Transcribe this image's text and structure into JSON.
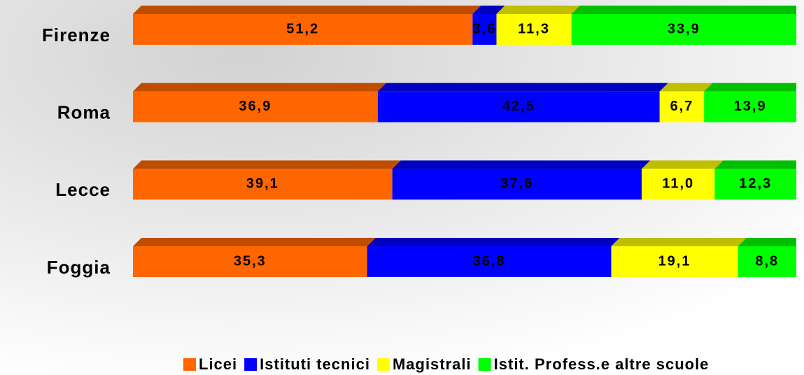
{
  "chart_data": {
    "type": "stacked-bar-horizontal",
    "categories": [
      "Firenze",
      "Roma",
      "Lecce",
      "Foggia"
    ],
    "series": [
      {
        "name": "Licei",
        "color": "#ff6600",
        "values": [
          51.2,
          36.9,
          39.1,
          35.3
        ],
        "value_labels": [
          "51,2",
          "36,9",
          "39,1",
          "35,3"
        ]
      },
      {
        "name": "Istituti tecnici",
        "color": "#0000ff",
        "values": [
          3.6,
          42.5,
          37.6,
          36.8
        ],
        "value_labels": [
          "3,6",
          "42,5",
          "37,6",
          "36,8"
        ]
      },
      {
        "name": "Magistrali",
        "color": "#ffff00",
        "values": [
          11.3,
          6.7,
          11.0,
          19.1
        ],
        "value_labels": [
          "11,3",
          "6,7",
          "11,0",
          "19,1"
        ]
      },
      {
        "name": "Istit. Profess.e altre scuole",
        "color": "#00ff00",
        "values": [
          33.9,
          13.9,
          12.3,
          8.8
        ],
        "value_labels": [
          "33,9",
          "13,9",
          "12,3",
          "8,8"
        ]
      }
    ],
    "legend": "bottom"
  }
}
